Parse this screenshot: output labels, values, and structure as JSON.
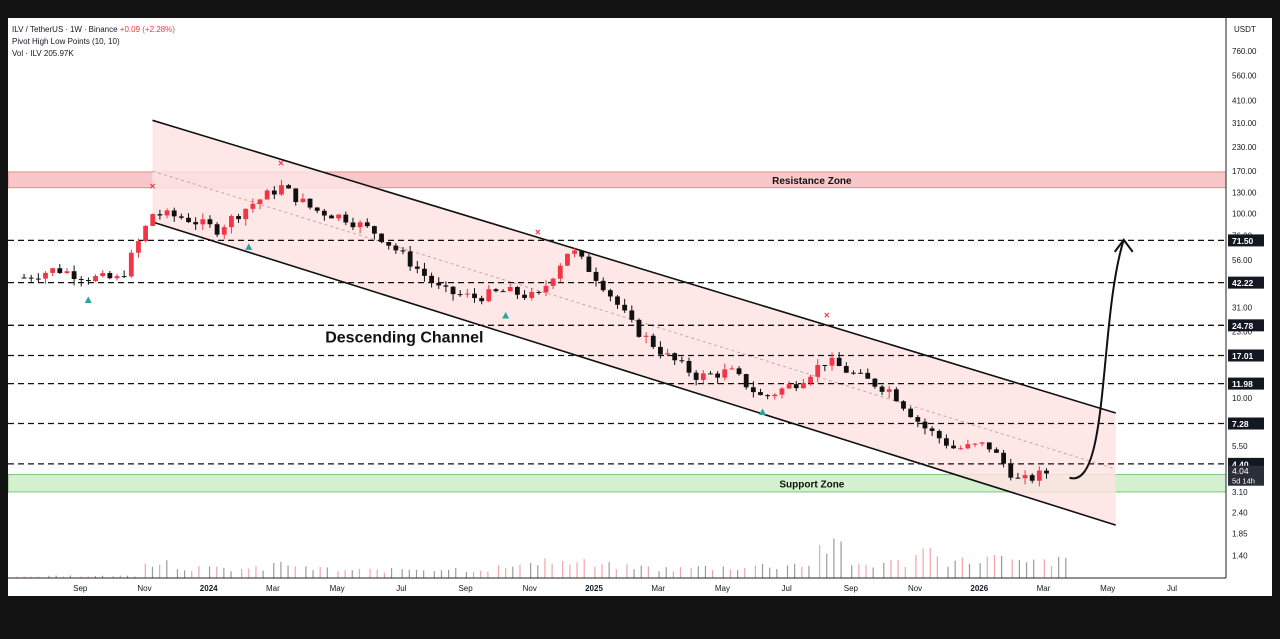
{
  "header": {
    "symbol": "ILV / TetherUS",
    "interval": "1W",
    "exchange": "Binance",
    "change": "+0.09 (+2.28%)",
    "indicator_label": "Pivot High Low Points (10, 10)",
    "volume_label": "Vol · ILV",
    "volume_value": "205.97K"
  },
  "colors": {
    "up": "#26a69a",
    "down": "#f23645",
    "resistance_fill": "#f8c7c9",
    "support_fill": "#d4f1cf",
    "channel_fill": "#fde3e3",
    "price_tag_bg": "#131722"
  },
  "chart_data": {
    "type": "candlestick",
    "currency_label": "USDT",
    "y_scale": "log",
    "ylim": [
      1.2,
      850
    ],
    "y_ticks": [
      "760.00",
      "560.00",
      "410.00",
      "310.00",
      "230.00",
      "170.00",
      "130.00",
      "100.00",
      "76.00",
      "56.00",
      "42.00",
      "31.00",
      "23.00",
      "17.00",
      "12.00",
      "10.00",
      "7.40",
      "5.50",
      "4.10",
      "3.10",
      "2.40",
      "1.85",
      "1.40"
    ],
    "x_ticks": [
      "Sep",
      "Nov",
      "2024",
      "Mar",
      "May",
      "Jul",
      "Sep",
      "Nov",
      "2025",
      "Mar",
      "May",
      "Jul",
      "Sep",
      "Nov",
      "2026",
      "Mar",
      "May",
      "Jul"
    ],
    "x_range": [
      "2023-07",
      "2026-08"
    ],
    "close_series": [
      {
        "date": "2023-07",
        "close": 45
      },
      {
        "date": "2023-08",
        "close": 50
      },
      {
        "date": "2023-09",
        "close": 45
      },
      {
        "date": "2023-10",
        "close": 44
      },
      {
        "date": "2023-11",
        "close": 100
      },
      {
        "date": "2023-12",
        "close": 95
      },
      {
        "date": "2024-01",
        "close": 82
      },
      {
        "date": "2024-02",
        "close": 110
      },
      {
        "date": "2024-03",
        "close": 140
      },
      {
        "date": "2024-04",
        "close": 105
      },
      {
        "date": "2024-05",
        "close": 95
      },
      {
        "date": "2024-06",
        "close": 78
      },
      {
        "date": "2024-07",
        "close": 55
      },
      {
        "date": "2024-08",
        "close": 38
      },
      {
        "date": "2024-09",
        "close": 35
      },
      {
        "date": "2024-10",
        "close": 38
      },
      {
        "date": "2024-11",
        "close": 35
      },
      {
        "date": "2024-12",
        "close": 65
      },
      {
        "date": "2025-01",
        "close": 42
      },
      {
        "date": "2025-02",
        "close": 24
      },
      {
        "date": "2025-03",
        "close": 17
      },
      {
        "date": "2025-04",
        "close": 13
      },
      {
        "date": "2025-05",
        "close": 14
      },
      {
        "date": "2025-06",
        "close": 10
      },
      {
        "date": "2025-07",
        "close": 12
      },
      {
        "date": "2025-08",
        "close": 16
      },
      {
        "date": "2025-09",
        "close": 13
      },
      {
        "date": "2025-10",
        "close": 11
      },
      {
        "date": "2025-11",
        "close": 7
      },
      {
        "date": "2025-12",
        "close": 5.3
      },
      {
        "date": "2026-01",
        "close": 5.6
      },
      {
        "date": "2026-02",
        "close": 3.5
      },
      {
        "date": "2026-03",
        "close": 4.04
      }
    ],
    "levels": [
      71.5,
      42.22,
      24.78,
      17.01,
      11.98,
      7.28,
      4.4
    ],
    "level_labels": [
      "71.50",
      "42.22",
      "24.78",
      "17.01",
      "11.98",
      "7.28",
      "4.40"
    ],
    "current_price": {
      "value": 4.04,
      "label": "4.04",
      "countdown": "5d 14h"
    },
    "zones": [
      {
        "name": "Resistance Zone",
        "low": 138,
        "high": 168
      },
      {
        "name": "Support Zone",
        "low": 3.1,
        "high": 3.85
      }
    ],
    "channel": {
      "label": "Descending Channel",
      "upper": [
        {
          "date": "2023-11",
          "value": 320
        },
        {
          "date": "2026-05",
          "value": 8.3
        }
      ],
      "lower": [
        {
          "date": "2023-11",
          "value": 90
        },
        {
          "date": "2026-05",
          "value": 2.05
        }
      ]
    },
    "pivot_highs": [
      {
        "date": "2023-11",
        "value": 135
      },
      {
        "date": "2024-03",
        "value": 180
      },
      {
        "date": "2024-11",
        "value": 76
      },
      {
        "date": "2025-08",
        "value": 27
      }
    ],
    "pivot_lows": [
      {
        "date": "2023-09",
        "value": 34
      },
      {
        "date": "2024-02",
        "value": 66
      },
      {
        "date": "2024-10",
        "value": 28
      },
      {
        "date": "2025-06",
        "value": 8.4
      }
    ],
    "projection": {
      "from": {
        "date": "2026-03",
        "value": 3.7
      },
      "to": {
        "date": "2026-05",
        "value": 72
      }
    },
    "volume": [
      {
        "date": "2023-07",
        "value": 0.05
      },
      {
        "date": "2023-08",
        "value": 0.08
      },
      {
        "date": "2023-09",
        "value": 0.06
      },
      {
        "date": "2023-10",
        "value": 0.07
      },
      {
        "date": "2023-11",
        "value": 0.55
      },
      {
        "date": "2023-12",
        "value": 0.35
      },
      {
        "date": "2024-01",
        "value": 0.3
      },
      {
        "date": "2024-02",
        "value": 0.3
      },
      {
        "date": "2024-03",
        "value": 0.45
      },
      {
        "date": "2024-04",
        "value": 0.3
      },
      {
        "date": "2024-05",
        "value": 0.25
      },
      {
        "date": "2024-06",
        "value": 0.25
      },
      {
        "date": "2024-07",
        "value": 0.3
      },
      {
        "date": "2024-08",
        "value": 0.3
      },
      {
        "date": "2024-09",
        "value": 0.28
      },
      {
        "date": "2024-10",
        "value": 0.35
      },
      {
        "date": "2024-11",
        "value": 0.6
      },
      {
        "date": "2024-12",
        "value": 0.5
      },
      {
        "date": "2025-01",
        "value": 0.4
      },
      {
        "date": "2025-02",
        "value": 0.35
      },
      {
        "date": "2025-03",
        "value": 0.3
      },
      {
        "date": "2025-04",
        "value": 0.35
      },
      {
        "date": "2025-05",
        "value": 0.35
      },
      {
        "date": "2025-06",
        "value": 0.4
      },
      {
        "date": "2025-07",
        "value": 0.45
      },
      {
        "date": "2025-08",
        "value": 1.0
      },
      {
        "date": "2025-09",
        "value": 0.45
      },
      {
        "date": "2025-10",
        "value": 0.5
      },
      {
        "date": "2025-11",
        "value": 0.9
      },
      {
        "date": "2025-12",
        "value": 0.55
      },
      {
        "date": "2026-01",
        "value": 0.65
      },
      {
        "date": "2026-02",
        "value": 0.5
      },
      {
        "date": "2026-03",
        "value": 0.55
      }
    ]
  }
}
